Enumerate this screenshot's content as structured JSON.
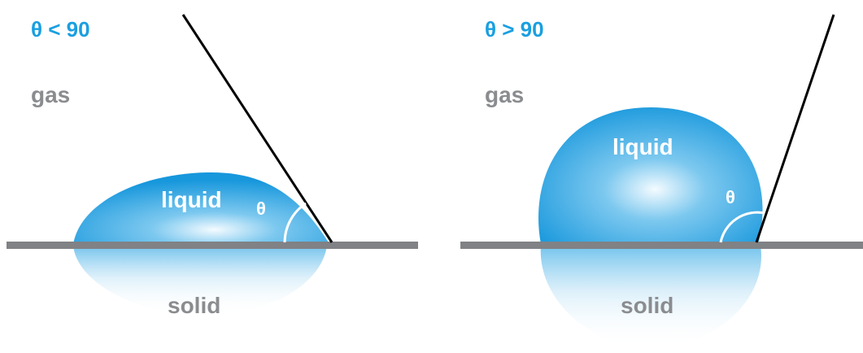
{
  "colors": {
    "accent": "#1a9fe0",
    "drop_light": "#e9f6fd",
    "drop_dark": "#1797dc",
    "surface": "#808285",
    "label_gray": "#8a8c8f",
    "line": "#000000",
    "white": "#ffffff"
  },
  "left_panel": {
    "condition": "θ < 90",
    "gas_label": "gas",
    "liquid_label": "liquid",
    "solid_label": "solid",
    "angle_symbol": "θ"
  },
  "right_panel": {
    "condition": "θ > 90",
    "gas_label": "gas",
    "liquid_label": "liquid",
    "solid_label": "solid",
    "angle_symbol": "θ"
  }
}
